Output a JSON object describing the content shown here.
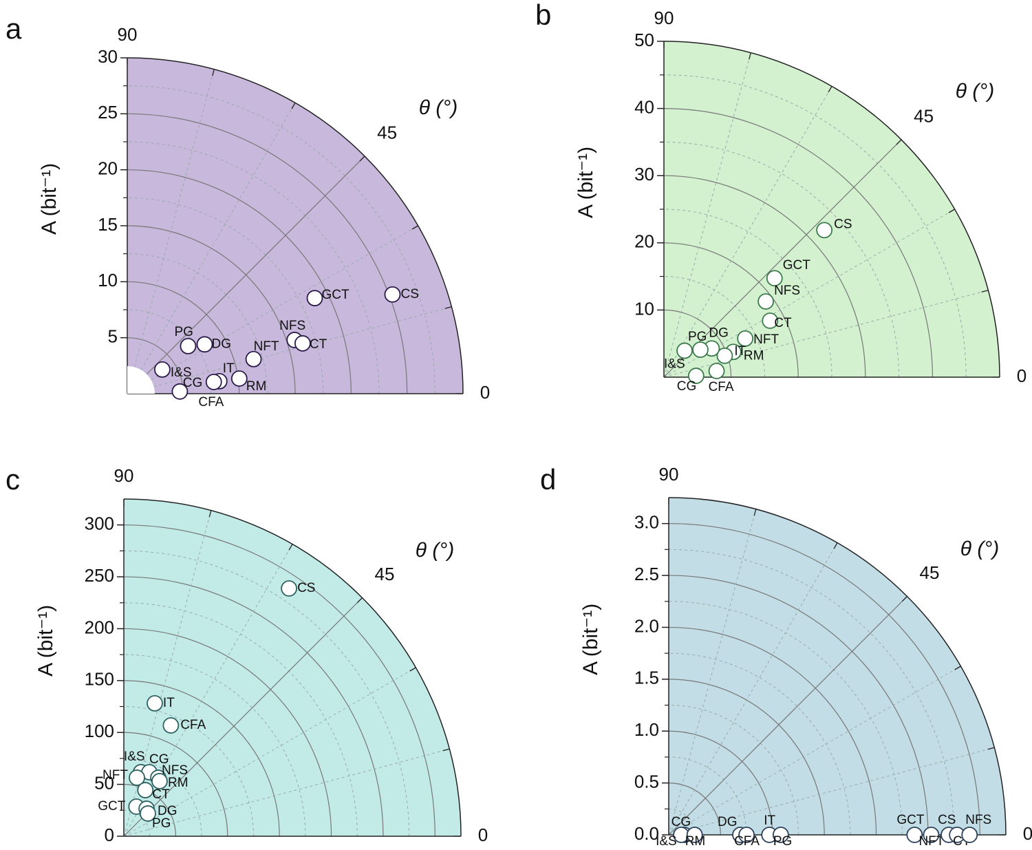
{
  "chart_data": [
    {
      "type": "polar_scatter",
      "panel": "a",
      "theta_label": "θ (°)",
      "r_label": "A (bit⁻¹)",
      "rlim": [
        0,
        30
      ],
      "rticks": [
        5,
        10,
        15,
        20,
        25,
        30
      ],
      "thetalim": [
        0,
        90
      ],
      "thetaticks": [
        0,
        45,
        90
      ],
      "fill": "#c8b8dc",
      "marker_edge": "#2a1a4a",
      "labels": [
        "CS",
        "GCT",
        "NFS",
        "CT",
        "NFT",
        "RM",
        "IT",
        "CG",
        "CFA",
        "DG",
        "PG",
        "I&S"
      ],
      "r": [
        25.3,
        18.8,
        15.7,
        16.3,
        11.7,
        10.1,
        8.3,
        7.8,
        4.7,
        8.2,
        6.9,
        3.8
      ],
      "theta": [
        20.5,
        27,
        17.8,
        16,
        15.3,
        7.7,
        7.7,
        7.7,
        2.4,
        32.5,
        38,
        34.6
      ]
    },
    {
      "type": "polar_scatter",
      "panel": "b",
      "theta_label": "θ (°)",
      "r_label": "A (bit⁻¹)",
      "rlim": [
        0,
        50
      ],
      "rticks": [
        10,
        20,
        30,
        40,
        50
      ],
      "thetalim": [
        0,
        90
      ],
      "thetaticks": [
        0,
        45,
        90
      ],
      "fill": "#d3f0cf",
      "marker_edge": "#3a7a4a",
      "labels": [
        "CS",
        "GCT",
        "NFS",
        "CT",
        "NFT",
        "RM",
        "IT",
        "CFA",
        "DG",
        "PG",
        "I&S",
        "CG"
      ],
      "r": [
        32.4,
        22.1,
        18.9,
        17.9,
        13.4,
        11.0,
        9.6,
        7.9,
        8.3,
        6.8,
        5.0,
        4.8
      ],
      "theta": [
        42.5,
        41.8,
        36.6,
        28,
        25.4,
        20,
        19.4,
        6.7,
        31,
        37,
        52,
        2.4
      ]
    },
    {
      "type": "polar_scatter",
      "panel": "c",
      "theta_label": "θ (°)",
      "r_label": "A (bit⁻¹)",
      "rlim": [
        0,
        325
      ],
      "rticks": [
        0,
        50,
        100,
        150,
        200,
        250,
        300
      ],
      "thetalim": [
        0,
        90
      ],
      "thetaticks": [
        0,
        45,
        90
      ],
      "fill": "#c2ebe8",
      "marker_edge": "#2d6060",
      "labels": [
        "CS",
        "IT",
        "CFA",
        "I&S",
        "CG",
        "NFT",
        "NFS",
        "RM",
        "CT",
        "GCT",
        "DG",
        "PG"
      ],
      "r": [
        287,
        131.5,
        116,
        63.9,
        66.4,
        57.8,
        65.4,
        63.3,
        49,
        31,
        34.4,
        31.9
      ],
      "theta": [
        56.3,
        76.9,
        67,
        75,
        68.3,
        77.4,
        59.5,
        57,
        65,
        67,
        50.4,
        43.4
      ]
    },
    {
      "type": "polar_scatter",
      "panel": "d",
      "theta_label": "θ (°)",
      "r_label": "A (bit⁻¹)",
      "rlim": [
        0,
        3.25
      ],
      "rticks": [
        {
          "value": 0,
          "label": "0.0"
        },
        0.5,
        {
          "value": 1,
          "label": "1.0"
        },
        1.5,
        {
          "value": 2,
          "label": "2.0"
        },
        2.5,
        {
          "value": 3,
          "label": "3.0"
        }
      ],
      "thetalim": [
        0,
        90
      ],
      "thetaticks": [
        0,
        45,
        90
      ],
      "fill": "#c2dde6",
      "marker_edge": "#2a3f5a",
      "labels": [
        "CG",
        "I&S",
        "RM",
        "DG",
        "CFA",
        "IT",
        "PG",
        "GCT",
        "NFT",
        "CS",
        "CT",
        "NFS"
      ],
      "r": [
        0.15,
        0.12,
        0.25,
        0.69,
        0.75,
        0.97,
        1.08,
        2.37,
        2.53,
        2.7,
        2.78,
        2.9
      ],
      "theta": [
        0,
        0,
        0,
        0,
        0,
        0,
        0,
        0,
        0,
        0,
        0,
        0
      ]
    }
  ]
}
